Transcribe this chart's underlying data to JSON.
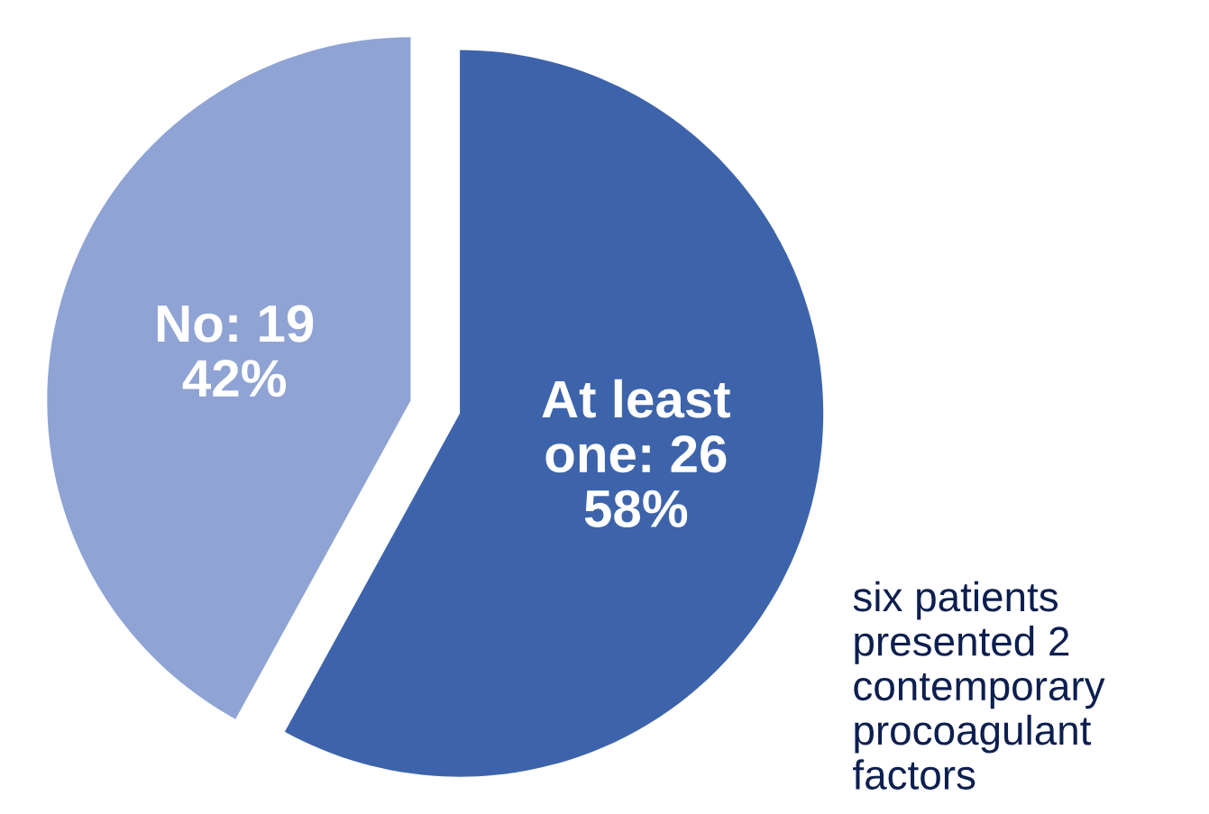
{
  "chart_data": {
    "type": "pie",
    "categories": [
      "At least one: 26",
      "No: 19"
    ],
    "values": [
      58,
      42
    ],
    "colors": [
      "#3d64ab",
      "#8fa3d4"
    ],
    "value_labels": [
      "58%",
      "42%"
    ],
    "annotations": [
      "six patients\npresented 2\ncontemporary\nprocoagulant\nfactors"
    ]
  }
}
